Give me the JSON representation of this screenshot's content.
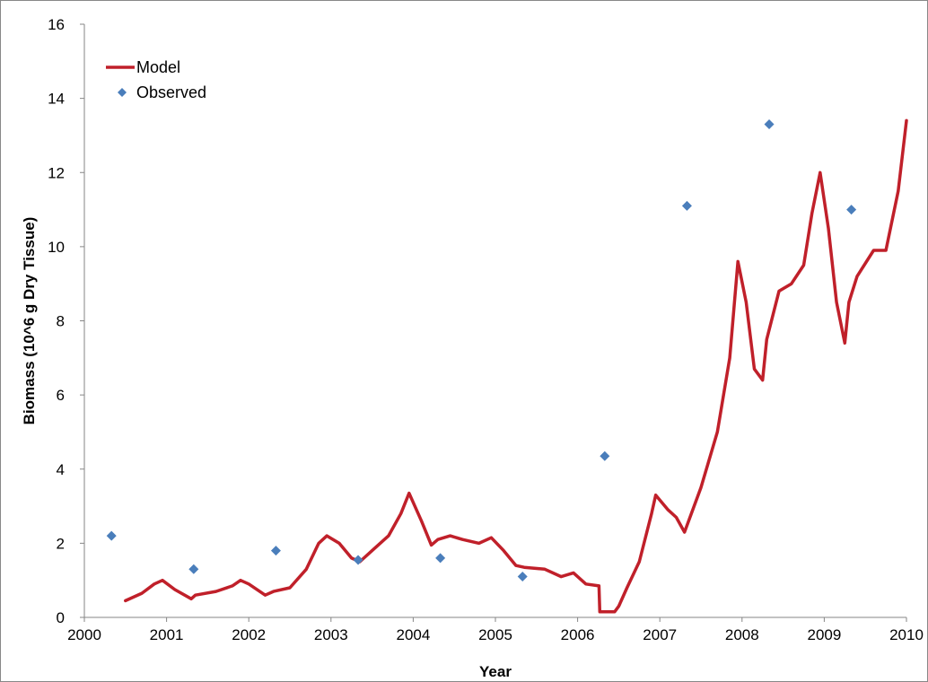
{
  "chart_data": {
    "type": "line",
    "title": "",
    "xlabel": "Year",
    "ylabel": "Biomass (10^6 g Dry Tissue)",
    "xlim": [
      2000,
      2010
    ],
    "ylim": [
      0,
      16
    ],
    "xticks": [
      "2000",
      "2001",
      "2002",
      "2003",
      "2004",
      "2005",
      "2006",
      "2007",
      "2008",
      "2009",
      "2010"
    ],
    "yticks": [
      "0",
      "2",
      "4",
      "6",
      "8",
      "10",
      "12",
      "14",
      "16"
    ],
    "grid": false,
    "legend_placement": "top-left",
    "series": [
      {
        "name": "Model",
        "kind": "line",
        "color": "#C0202A",
        "x": [
          2000.5,
          2000.7,
          2000.85,
          2000.95,
          2001.1,
          2001.3,
          2001.35,
          2001.6,
          2001.8,
          2001.9,
          2002.0,
          2002.2,
          2002.3,
          2002.5,
          2002.7,
          2002.85,
          2002.95,
          2003.1,
          2003.25,
          2003.35,
          2003.5,
          2003.7,
          2003.85,
          2003.95,
          2004.1,
          2004.22,
          2004.3,
          2004.45,
          2004.6,
          2004.8,
          2004.95,
          2005.1,
          2005.25,
          2005.35,
          2005.6,
          2005.8,
          2005.95,
          2006.1,
          2006.26,
          2006.27,
          2006.45,
          2006.5,
          2006.6,
          2006.75,
          2006.9,
          2006.95,
          2007.1,
          2007.2,
          2007.3,
          2007.5,
          2007.7,
          2007.85,
          2007.95,
          2008.05,
          2008.15,
          2008.25,
          2008.3,
          2008.45,
          2008.6,
          2008.75,
          2008.85,
          2008.95,
          2009.05,
          2009.15,
          2009.25,
          2009.3,
          2009.4,
          2009.6,
          2009.75,
          2009.9,
          2010.0
        ],
        "y": [
          0.45,
          0.65,
          0.9,
          1.0,
          0.75,
          0.5,
          0.6,
          0.7,
          0.85,
          1.0,
          0.9,
          0.6,
          0.7,
          0.8,
          1.3,
          2.0,
          2.2,
          2.0,
          1.6,
          1.5,
          1.8,
          2.2,
          2.8,
          3.35,
          2.6,
          1.95,
          2.1,
          2.2,
          2.1,
          2.0,
          2.15,
          1.8,
          1.4,
          1.35,
          1.3,
          1.1,
          1.2,
          0.9,
          0.85,
          0.15,
          0.15,
          0.3,
          0.8,
          1.5,
          2.8,
          3.3,
          2.9,
          2.7,
          2.3,
          3.5,
          5.0,
          7.0,
          9.6,
          8.5,
          6.7,
          6.4,
          7.5,
          8.8,
          9.0,
          9.5,
          10.9,
          12.0,
          10.5,
          8.5,
          7.4,
          8.5,
          9.2,
          9.9,
          9.9,
          11.5,
          13.4
        ]
      },
      {
        "name": "Observed",
        "kind": "scatter",
        "color": "#4A7EBB",
        "x": [
          2000.33,
          2001.33,
          2002.33,
          2003.33,
          2004.33,
          2005.33,
          2006.33,
          2007.33,
          2008.33,
          2009.33
        ],
        "y": [
          2.2,
          1.3,
          1.8,
          1.55,
          1.6,
          1.1,
          4.35,
          11.1,
          13.3,
          11.0
        ]
      }
    ]
  }
}
